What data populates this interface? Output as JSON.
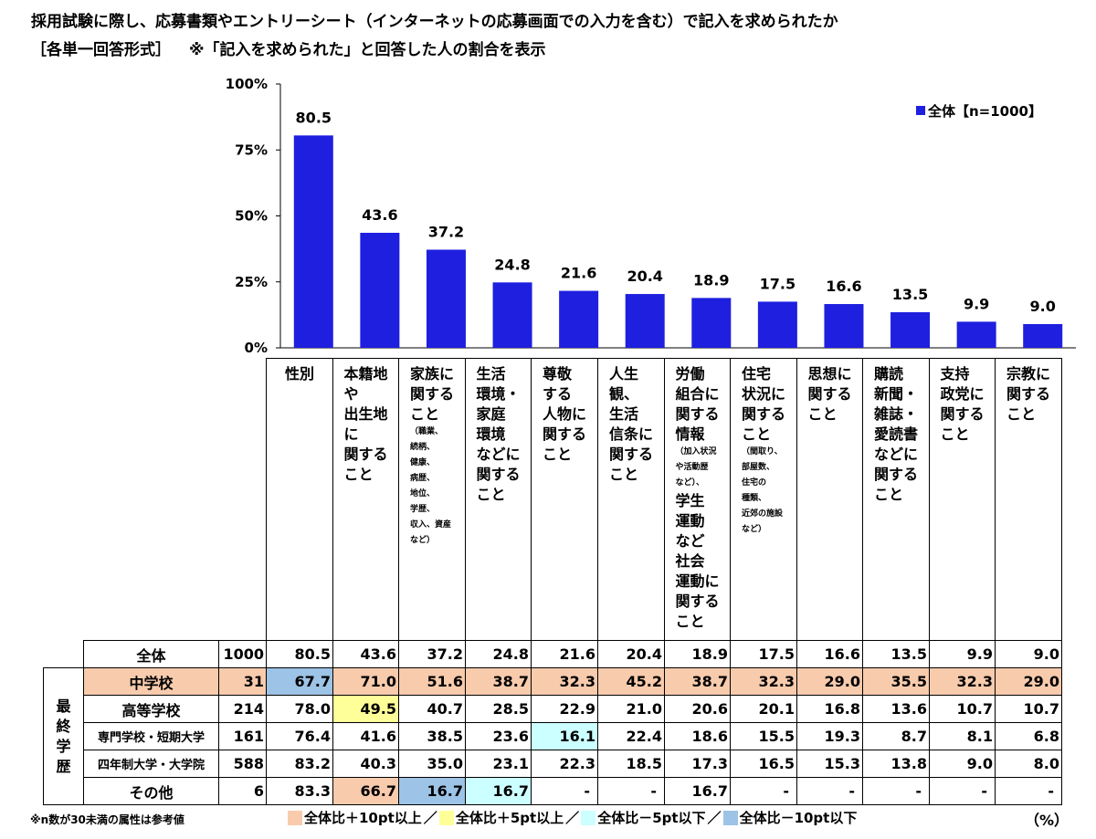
{
  "title": {
    "line1": "採用試験に際し、応募書類やエントリーシート（インターネットの応募画面での入力を含む）で記入を求められたか",
    "format": "［各単一回答形式］",
    "note": "※「記入を求められた」と回答した人の割合を表示"
  },
  "chart_data": {
    "type": "bar",
    "categories": [
      "性別",
      "本籍地や出生地に関すること",
      "家族に関すること",
      "生活環境・家庭環境などに関すること",
      "尊敬する人物に関すること",
      "人生観、生活信条に関すること",
      "労働組合に関する情報、学生運動など社会運動に関すること",
      "住宅状況に関すること",
      "思想に関すること",
      "購読新聞・雑誌・愛読書などに関すること",
      "支持政党に関すること",
      "宗教に関すること"
    ],
    "category_lines": [
      [
        {
          "t": "性別"
        }
      ],
      [
        {
          "t": "本籍地"
        },
        {
          "t": "や"
        },
        {
          "t": "出生地"
        },
        {
          "t": "に"
        },
        {
          "t": "関する"
        },
        {
          "t": "こと"
        }
      ],
      [
        {
          "t": "家族に"
        },
        {
          "t": "関する"
        },
        {
          "t": "こと"
        },
        {
          "t": "（職業、",
          "s": true
        },
        {
          "t": "続柄、",
          "s": true
        },
        {
          "t": "健康、",
          "s": true
        },
        {
          "t": "病歴、",
          "s": true
        },
        {
          "t": "地位、",
          "s": true
        },
        {
          "t": "学歴、",
          "s": true
        },
        {
          "t": "収入、資産",
          "s": true
        },
        {
          "t": "など）",
          "s": true
        }
      ],
      [
        {
          "t": "生活"
        },
        {
          "t": "環境・"
        },
        {
          "t": "家庭"
        },
        {
          "t": "環境"
        },
        {
          "t": "などに"
        },
        {
          "t": "関する"
        },
        {
          "t": "こと"
        }
      ],
      [
        {
          "t": "尊敬"
        },
        {
          "t": "する"
        },
        {
          "t": "人物に"
        },
        {
          "t": "関する"
        },
        {
          "t": "こと"
        }
      ],
      [
        {
          "t": "人生"
        },
        {
          "t": "観、"
        },
        {
          "t": "生活"
        },
        {
          "t": "信条に"
        },
        {
          "t": "関する"
        },
        {
          "t": "こと"
        }
      ],
      [
        {
          "t": "労働"
        },
        {
          "t": "組合に"
        },
        {
          "t": "関する"
        },
        {
          "t": "情報"
        },
        {
          "t": "（加入状況",
          "s": true
        },
        {
          "t": "や活動歴",
          "s": true
        },
        {
          "t": "など）、",
          "s": true
        },
        {
          "t": "学生"
        },
        {
          "t": "運動"
        },
        {
          "t": "など"
        },
        {
          "t": "社会"
        },
        {
          "t": "運動に"
        },
        {
          "t": "関する"
        },
        {
          "t": "こと"
        }
      ],
      [
        {
          "t": "住宅"
        },
        {
          "t": "状況に"
        },
        {
          "t": "関する"
        },
        {
          "t": "こと"
        },
        {
          "t": "（間取り、",
          "s": true
        },
        {
          "t": "部屋数、",
          "s": true
        },
        {
          "t": "住宅の",
          "s": true
        },
        {
          "t": "種類、",
          "s": true
        },
        {
          "t": "近郊の施設",
          "s": true
        },
        {
          "t": "など）",
          "s": true
        }
      ],
      [
        {
          "t": "思想に"
        },
        {
          "t": "関する"
        },
        {
          "t": "こと"
        }
      ],
      [
        {
          "t": "購読"
        },
        {
          "t": "新聞・"
        },
        {
          "t": "雑誌・"
        },
        {
          "t": "愛読書"
        },
        {
          "t": "などに"
        },
        {
          "t": "関する"
        },
        {
          "t": "こと"
        }
      ],
      [
        {
          "t": "支持"
        },
        {
          "t": "政党に"
        },
        {
          "t": "関する"
        },
        {
          "t": "こと"
        }
      ],
      [
        {
          "t": "宗教に"
        },
        {
          "t": "関する"
        },
        {
          "t": "こと"
        }
      ]
    ],
    "series": [
      {
        "name": "全体【n=1000】",
        "values": [
          80.5,
          43.6,
          37.2,
          24.8,
          21.6,
          20.4,
          18.9,
          17.5,
          16.6,
          13.5,
          9.9,
          9.0
        ],
        "labels": [
          "80.5",
          "43.6",
          "37.2",
          "24.8",
          "21.6",
          "20.4",
          "18.9",
          "17.5",
          "16.6",
          "13.5",
          "9.9",
          "9.0"
        ]
      }
    ],
    "ylim": [
      0,
      100
    ],
    "yticks": [
      {
        "value": 0,
        "label": "0%"
      },
      {
        "value": 25,
        "label": "25%"
      },
      {
        "value": 50,
        "label": "50%"
      },
      {
        "value": 75,
        "label": "75%"
      },
      {
        "value": 100,
        "label": "100%"
      }
    ],
    "legend_position": "top-right",
    "bar_color": "#1F1FE0",
    "table": {
      "group_label": "最終学歴",
      "rows": [
        {
          "label": "全体",
          "n": "1000",
          "values": [
            "80.5",
            "43.6",
            "37.2",
            "24.8",
            "21.6",
            "20.4",
            "18.9",
            "17.5",
            "16.6",
            "13.5",
            "9.9",
            "9.0"
          ],
          "marks": [
            "",
            "",
            "",
            "",
            "",
            "",
            "",
            "",
            "",
            "",
            "",
            ""
          ]
        },
        {
          "label": "中学校",
          "n": "31",
          "values": [
            "67.7",
            "71.0",
            "51.6",
            "38.7",
            "32.3",
            "45.2",
            "38.7",
            "32.3",
            "29.0",
            "35.5",
            "32.3",
            "29.0"
          ],
          "marks": [
            "lo10",
            "hi10",
            "hi10",
            "hi10",
            "hi10",
            "hi10",
            "hi10",
            "hi10",
            "hi10",
            "hi10",
            "hi10",
            "hi10"
          ],
          "shade_row": true
        },
        {
          "label": "高等学校",
          "n": "214",
          "values": [
            "78.0",
            "49.5",
            "40.7",
            "28.5",
            "22.9",
            "21.0",
            "20.6",
            "20.1",
            "16.8",
            "13.6",
            "10.7",
            "10.7"
          ],
          "marks": [
            "",
            "hi5",
            "",
            "",
            "",
            "",
            "",
            "",
            "",
            "",
            "",
            ""
          ]
        },
        {
          "label": "専門学校・短期大学",
          "n": "161",
          "values": [
            "76.4",
            "41.6",
            "38.5",
            "23.6",
            "16.1",
            "22.4",
            "18.6",
            "15.5",
            "19.3",
            "8.7",
            "8.1",
            "6.8"
          ],
          "marks": [
            "",
            "",
            "",
            "",
            "lo5",
            "",
            "",
            "",
            "",
            "",
            "",
            ""
          ],
          "small": true
        },
        {
          "label": "四年制大学・大学院",
          "n": "588",
          "values": [
            "83.2",
            "40.3",
            "35.0",
            "23.1",
            "22.3",
            "18.5",
            "17.3",
            "16.5",
            "15.3",
            "13.8",
            "9.0",
            "8.0"
          ],
          "marks": [
            "",
            "",
            "",
            "",
            "",
            "",
            "",
            "",
            "",
            "",
            "",
            ""
          ],
          "small": true
        },
        {
          "label": "その他",
          "n": "6",
          "values": [
            "83.3",
            "66.7",
            "16.7",
            "16.7",
            "-",
            "-",
            "16.7",
            "-",
            "-",
            "-",
            "-",
            "-"
          ],
          "marks": [
            "",
            "hi10",
            "lo10",
            "lo5",
            "",
            "",
            "",
            "",
            "",
            "",
            "",
            ""
          ]
        }
      ]
    }
  },
  "footer": {
    "note": "※n数が30未満の属性は参考値",
    "legend": [
      {
        "label": "全体比＋10pt以上",
        "color": "#F8CBAD"
      },
      {
        "label": "全体比＋5pt以上",
        "color": "#FFFF99"
      },
      {
        "label": "全体比－5pt以下",
        "color": "#CCFFFF"
      },
      {
        "label": "全体比－10pt以下",
        "color": "#9DC3E6"
      }
    ],
    "unit": "（%）"
  }
}
